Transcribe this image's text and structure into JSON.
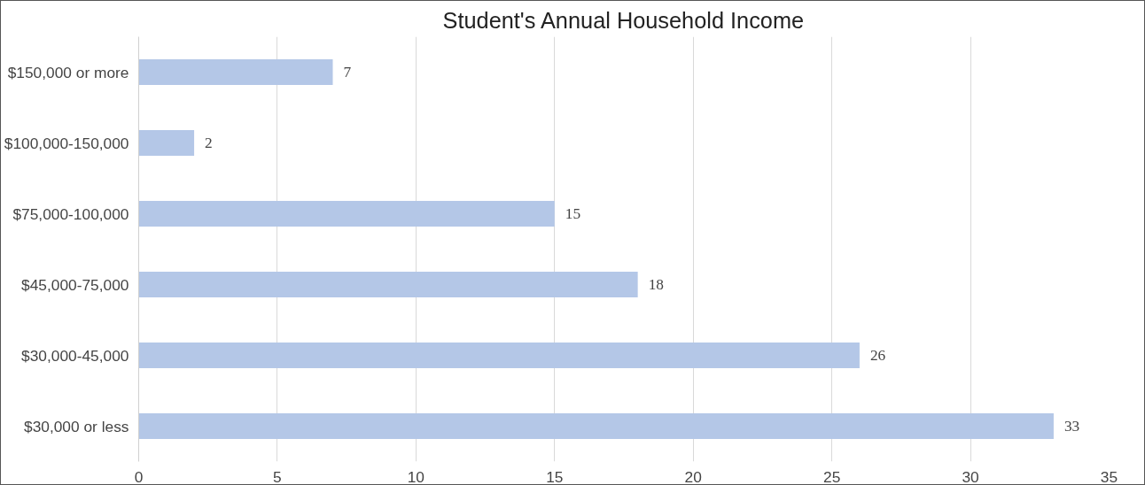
{
  "chart_data": {
    "type": "bar",
    "orientation": "horizontal",
    "title": "Student's Annual Household Income",
    "categories": [
      "$150,000 or more",
      "$100,000-150,000",
      "$75,000-100,000",
      "$45,000-75,000",
      "$30,000-45,000",
      "$30,000 or less"
    ],
    "values": [
      7,
      2,
      15,
      18,
      26,
      33
    ],
    "color": "#b4c7e7",
    "xlim": [
      0,
      35
    ],
    "xticks": [
      0,
      5,
      10,
      15,
      20,
      25,
      30,
      35
    ],
    "grid": "x",
    "data_labels": true
  }
}
